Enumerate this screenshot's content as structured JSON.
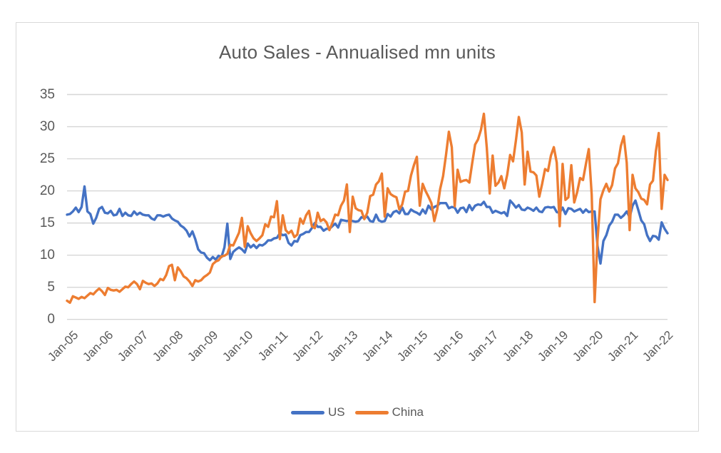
{
  "chart_data": {
    "type": "line",
    "title": "Auto Sales - Annualised mn units",
    "x_start": "Jan-2005",
    "x_end": "Mar-2022",
    "frequency": "monthly",
    "x_tick_labels": [
      "Jan-05",
      "Jan-06",
      "Jan-07",
      "Jan-08",
      "Jan-09",
      "Jan-10",
      "Jan-11",
      "Jan-12",
      "Jan-13",
      "Jan-14",
      "Jan-15",
      "Jan-16",
      "Jan-17",
      "Jan-18",
      "Jan-19",
      "Jan-20",
      "Jan-21",
      "Jan-22"
    ],
    "months_per_tick": 12,
    "y_ticks": [
      0,
      5,
      10,
      15,
      20,
      25,
      30,
      35
    ],
    "ylim": [
      0,
      35
    ],
    "grid": "horizontal",
    "legend_position": "bottom",
    "text_color": "#595959",
    "gridline_color": "#d6d6d6",
    "series": [
      {
        "name": "US",
        "color": "#4472C4",
        "values": [
          16.3,
          16.4,
          16.8,
          17.4,
          16.7,
          17.5,
          20.7,
          16.8,
          16.4,
          14.9,
          15.8,
          17.2,
          17.5,
          16.6,
          16.5,
          16.9,
          16.2,
          16.3,
          17.2,
          16.1,
          16.6,
          16.2,
          16.1,
          16.8,
          16.3,
          16.6,
          16.3,
          16.2,
          16.2,
          15.7,
          15.5,
          16.2,
          16.2,
          16.0,
          16.2,
          16.3,
          15.7,
          15.4,
          15.2,
          14.6,
          14.3,
          13.8,
          12.9,
          13.7,
          12.5,
          10.9,
          10.4,
          10.3,
          9.6,
          9.2,
          9.7,
          9.3,
          9.9,
          9.7,
          11.2,
          14.9,
          9.4,
          10.5,
          10.9,
          11.2,
          10.9,
          10.4,
          11.8,
          11.2,
          11.6,
          11.1,
          11.6,
          11.5,
          11.8,
          12.3,
          12.3,
          12.6,
          12.7,
          13.4,
          13.1,
          13.2,
          11.9,
          11.5,
          12.2,
          12.1,
          13.1,
          13.3,
          13.6,
          13.6,
          14.2,
          15.0,
          14.4,
          14.4,
          13.8,
          14.1,
          14.1,
          14.5,
          14.9,
          14.3,
          15.5,
          15.4,
          15.3,
          15.4,
          15.3,
          15.2,
          15.3,
          15.9,
          15.8,
          16.0,
          15.3,
          15.2,
          16.3,
          15.4,
          15.2,
          15.3,
          16.4,
          16.0,
          16.7,
          16.9,
          16.5,
          17.4,
          16.4,
          16.4,
          17.1,
          16.8,
          16.6,
          16.3,
          17.1,
          16.5,
          17.7,
          17.1,
          17.5,
          17.7,
          18.1,
          18.1,
          18.1,
          17.3,
          17.5,
          17.4,
          16.6,
          17.3,
          17.4,
          16.7,
          17.8,
          17.0,
          17.7,
          17.9,
          17.8,
          18.3,
          17.5,
          17.5,
          16.6,
          16.9,
          16.7,
          16.5,
          16.7,
          16.1,
          18.5,
          18.0,
          17.4,
          17.8,
          17.1,
          17.0,
          17.4,
          17.2,
          16.9,
          17.4,
          16.8,
          16.7,
          17.4,
          17.5,
          17.4,
          17.5,
          16.7,
          16.6,
          17.4,
          16.4,
          17.3,
          17.2,
          16.8,
          17.0,
          17.2,
          16.6,
          17.1,
          16.7,
          16.8,
          16.8,
          11.4,
          8.7,
          12.2,
          13.1,
          14.6,
          15.2,
          16.3,
          16.3,
          15.8,
          16.2,
          16.8,
          15.9,
          17.7,
          18.5,
          17.0,
          15.4,
          14.8,
          13.1,
          12.2,
          13.0,
          12.9,
          12.4,
          15.1,
          14.1,
          13.4
        ]
      },
      {
        "name": "China",
        "color": "#ED7D31",
        "values": [
          2.9,
          2.6,
          3.6,
          3.4,
          3.2,
          3.5,
          3.3,
          3.7,
          4.1,
          3.9,
          4.4,
          4.8,
          4.4,
          3.8,
          4.9,
          4.6,
          4.5,
          4.6,
          4.3,
          4.7,
          5.1,
          5.0,
          5.5,
          5.9,
          5.5,
          4.7,
          6.0,
          5.7,
          5.5,
          5.6,
          5.2,
          5.6,
          6.3,
          6.1,
          6.9,
          8.3,
          8.5,
          6.1,
          8.1,
          7.5,
          6.7,
          6.4,
          5.9,
          5.2,
          6.1,
          5.9,
          6.1,
          6.6,
          6.9,
          7.3,
          8.6,
          9.0,
          9.2,
          9.8,
          9.9,
          10.2,
          11.6,
          11.5,
          12.5,
          13.5,
          15.8,
          11.3,
          14.5,
          13.4,
          12.6,
          12.2,
          12.6,
          13.1,
          14.8,
          14.4,
          16.0,
          15.9,
          18.4,
          12.5,
          16.2,
          13.9,
          13.4,
          13.8,
          12.8,
          13.2,
          15.7,
          14.9,
          16.2,
          16.9,
          14.5,
          14.2,
          16.6,
          15.3,
          15.6,
          15.1,
          13.9,
          15.0,
          16.3,
          16.2,
          17.7,
          18.5,
          21.0,
          13.6,
          19.1,
          17.3,
          17.0,
          16.9,
          15.6,
          16.6,
          19.2,
          19.4,
          21.0,
          21.5,
          22.7,
          16.0,
          20.4,
          19.5,
          19.2,
          19.0,
          17.1,
          17.9,
          19.9,
          20.0,
          22.4,
          24.0,
          25.3,
          17.7,
          21.1,
          20.0,
          19.1,
          18.1,
          15.3,
          17.1,
          20.3,
          22.3,
          25.6,
          29.2,
          26.8,
          17.6,
          23.3,
          21.4,
          21.6,
          21.7,
          21.3,
          24.3,
          27.2,
          28.0,
          29.5,
          32.0,
          26.7,
          19.6,
          25.5,
          20.8,
          21.3,
          22.3,
          20.4,
          22.5,
          25.6,
          24.6,
          27.9,
          31.5,
          29.1,
          21.0,
          26.1,
          23.0,
          22.9,
          22.4,
          19.1,
          21.1,
          23.4,
          23.1,
          25.5,
          26.8,
          24.4,
          14.5,
          24.2,
          18.6,
          19.0,
          24.0,
          18.2,
          19.8,
          22.0,
          21.7,
          24.2,
          26.5,
          19.4,
          2.7,
          12.5,
          18.7,
          20.1,
          21.1,
          19.9,
          20.9,
          23.5,
          24.3,
          27.0,
          28.5,
          24.4,
          13.9,
          22.5,
          20.4,
          19.8,
          18.8,
          18.6,
          17.9,
          21.0,
          21.6,
          26.2,
          29.0,
          17.2,
          22.5,
          21.7
        ]
      }
    ]
  }
}
